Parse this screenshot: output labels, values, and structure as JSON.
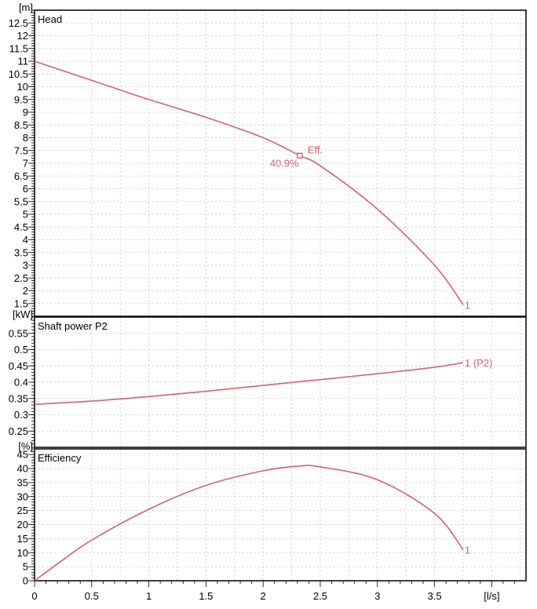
{
  "chart_data": [
    {
      "type": "line",
      "title": "Head",
      "unit": "[m]",
      "ylim": [
        1,
        13
      ],
      "ytick_labels": [
        "1.5",
        "2",
        "2.5",
        "3",
        "3.5",
        "4",
        "4.5",
        "5",
        "5.5",
        "6",
        "6.5",
        "7",
        "7.5",
        "8",
        "8.5",
        "9",
        "9.5",
        "10",
        "10.5",
        "11",
        "11.5",
        "12",
        "12.5"
      ],
      "series": [
        {
          "curve_label": "1",
          "x": [
            0,
            0.5,
            1.0,
            1.5,
            2.0,
            2.32,
            2.5,
            3.0,
            3.5,
            3.75
          ],
          "values": [
            11.0,
            10.25,
            9.5,
            8.8,
            8.0,
            7.3,
            6.9,
            5.2,
            3.0,
            1.45
          ]
        }
      ],
      "annotations": [
        {
          "text": "Eff.",
          "x": 2.32,
          "y": 7.3
        },
        {
          "text": "40.9%",
          "x": 2.32,
          "y": 7.3
        }
      ],
      "grid": true
    },
    {
      "type": "line",
      "title": "Shaft power P2",
      "unit": "[kW]",
      "ylim": [
        0.2,
        0.6
      ],
      "ytick_labels": [
        "0.25",
        "0.3",
        "0.35",
        "0.4",
        "0.45",
        "0.5",
        "0.55"
      ],
      "series": [
        {
          "curve_label": "1 (P2)",
          "x": [
            0,
            0.5,
            1.0,
            1.5,
            2.0,
            2.5,
            3.0,
            3.5,
            3.75
          ],
          "values": [
            0.332,
            0.342,
            0.356,
            0.372,
            0.39,
            0.408,
            0.426,
            0.446,
            0.46
          ]
        }
      ],
      "grid": true
    },
    {
      "type": "line",
      "title": "Efficiency",
      "unit": "[%]",
      "ylim": [
        0,
        47
      ],
      "ytick_labels": [
        "0",
        "5",
        "10",
        "15",
        "20",
        "25",
        "30",
        "35",
        "40",
        "45"
      ],
      "series": [
        {
          "curve_label": "1",
          "x": [
            0,
            0.25,
            0.5,
            1.0,
            1.5,
            2.0,
            2.32,
            2.5,
            3.0,
            3.5,
            3.75
          ],
          "values": [
            0,
            7.5,
            14.5,
            25.5,
            34.0,
            39.2,
            40.9,
            40.6,
            36.0,
            24.0,
            11.0
          ]
        }
      ],
      "grid": true
    }
  ],
  "x_axis": {
    "unit": "[l/s]",
    "xlim": [
      0,
      4.3
    ],
    "tick_labels": [
      "0",
      "0.5",
      "1",
      "1.5",
      "2",
      "2.5",
      "3",
      "3.5"
    ]
  },
  "colors": {
    "curve": "#d9606a",
    "frame": "#000000",
    "grid": "#c8c8c8"
  }
}
